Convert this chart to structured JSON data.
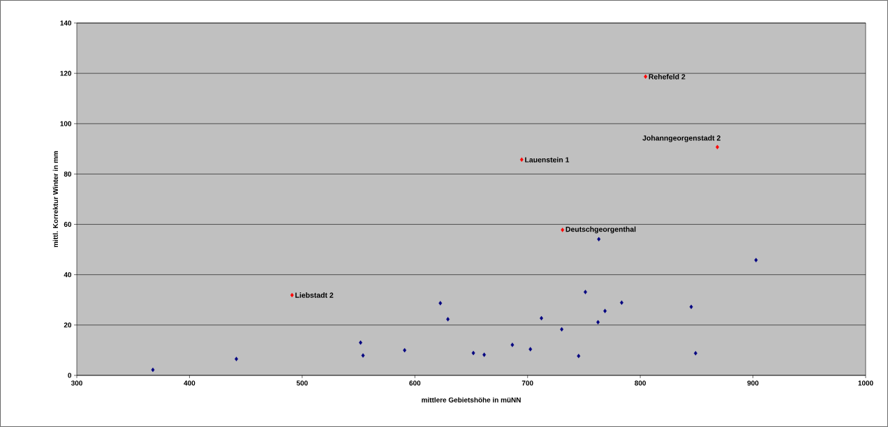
{
  "chart_data": {
    "type": "scatter",
    "xlabel": "mittlere Gebietshöhe in müNN",
    "ylabel": "mittl. Korrektur Winter in mm",
    "series": [
      {
        "color": "#000080",
        "x": [
          367.5,
          441.6,
          551.8,
          554,
          590.9,
          622.6,
          629.3,
          651.9,
          661.5,
          686.5,
          702.5,
          712.3,
          730.3,
          745.3,
          751.3,
          763.2,
          762.5,
          768.7,
          783.5,
          845.2,
          849.1,
          902.7
        ],
        "values": [
          2.2,
          6.5,
          13.0,
          7.9,
          10.0,
          28.7,
          22.3,
          8.9,
          8.2,
          12.1,
          10.4,
          22.7,
          18.3,
          7.7,
          33.1,
          54.1,
          21.1,
          25.6,
          28.9,
          27.2,
          8.8,
          45.8
        ]
      },
      {
        "color": "#ff0000",
        "x": [
          491,
          731,
          694.8,
          804.7,
          868.4
        ],
        "values": [
          31.9,
          57.8,
          85.7,
          118.7,
          90.7
        ]
      }
    ],
    "annotations": [
      {
        "text": "Liebstadt 2",
        "x": 491,
        "y": 31.9
      },
      {
        "text": "Deutschgeorgenthal",
        "x": 731,
        "y": 57.8
      },
      {
        "text": "Lauenstein 1",
        "x": 694.8,
        "y": 85.7
      },
      {
        "text": "Rehefeld 2",
        "x": 804.7,
        "y": 118.7
      },
      {
        "text": "Johanngeorgenstadt 2",
        "x": 868.4,
        "y": 90.7
      }
    ],
    "xlim": [
      300,
      1000
    ],
    "xticks": [
      300,
      400,
      500,
      600,
      700,
      800,
      900,
      1000
    ],
    "ylim": [
      0,
      140
    ],
    "yticks": [
      0,
      20,
      40,
      60,
      80,
      100,
      120,
      140
    ],
    "grid": "y",
    "marker": "diamond"
  }
}
